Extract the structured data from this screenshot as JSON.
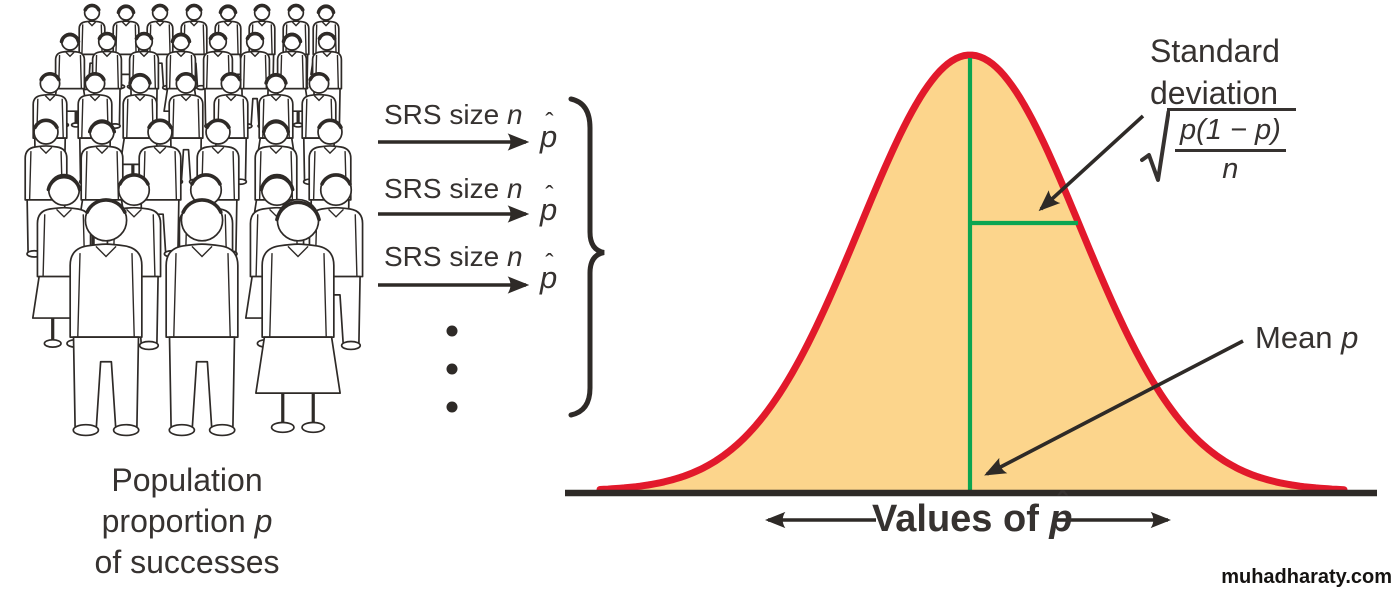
{
  "colors": {
    "curve_red": "#e2192b",
    "curve_fill": "#fcd58c",
    "green": "#0ba551",
    "ink": "#2e2a27",
    "text": "#363230"
  },
  "population": {
    "line1": "Population",
    "line2_prefix": "proportion ",
    "line2_var": "p",
    "line3": "of successes"
  },
  "srs": {
    "label_prefix": "SRS size ",
    "label_var": "n",
    "result_var": "p",
    "hat": "ˆ"
  },
  "distribution": {
    "std_label_line1": "Standard",
    "std_label_line2": "deviation",
    "formula": {
      "numerator": "p(1 − p)",
      "denominator": "n"
    },
    "mean_label_prefix": "Mean ",
    "mean_label_var": "p",
    "axis_label_prefix": "Values of ",
    "axis_label_var": "p",
    "axis_label_hat": "ˆ"
  },
  "watermark": "muhadharaty.com"
}
